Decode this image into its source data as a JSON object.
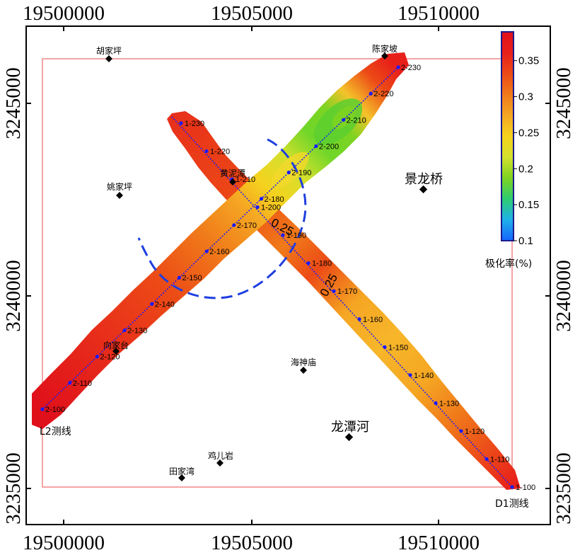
{
  "map": {
    "x_axis": {
      "min": 19499000,
      "max": 19512700,
      "ticks": [
        "19500000",
        "19505000",
        "19510000"
      ],
      "tick_values": [
        19500000,
        19505000,
        19510000
      ]
    },
    "y_axis": {
      "min": 3234700,
      "max": 3247600,
      "ticks": [
        "3235000",
        "3240000",
        "3245000"
      ],
      "tick_values": [
        3235000,
        3240000,
        3245000
      ]
    },
    "survey_lines": [
      {
        "id": "D1",
        "label": "D1测线",
        "start_station": "1-100",
        "end_station": "1-230",
        "stations": [
          "1-100",
          "1-110",
          "1-120",
          "1-130",
          "1-140",
          "1-150",
          "1-160",
          "1-170",
          "1-180",
          "1-190",
          "1-200",
          "1-210",
          "1-220",
          "1-230"
        ]
      },
      {
        "id": "L2",
        "label": "L2测线",
        "start_station": "2-100",
        "end_station": "2-230",
        "stations": [
          "2-100",
          "2-110",
          "2-120",
          "2-130",
          "2-140",
          "2-150",
          "2-160",
          "2-170",
          "2-180",
          "2-190",
          "2-200",
          "2-210",
          "2-220",
          "2-230"
        ]
      }
    ],
    "places": [
      {
        "name": "胡家坪",
        "size": "small"
      },
      {
        "name": "陈家坡",
        "size": "small"
      },
      {
        "name": "姚家坪",
        "size": "small"
      },
      {
        "name": "黄泥潭",
        "size": "small"
      },
      {
        "name": "景龙桥",
        "size": "large"
      },
      {
        "name": "向家台",
        "size": "small"
      },
      {
        "name": "海神庙",
        "size": "small"
      },
      {
        "name": "龙潭河",
        "size": "large"
      },
      {
        "name": "鸡儿岩",
        "size": "small"
      },
      {
        "name": "田家湾",
        "size": "small"
      }
    ],
    "contour_labels": [
      "0.25",
      "0.25"
    ],
    "colorbar": {
      "title": "极化率(%)",
      "min": 0.1,
      "max": 0.39,
      "ticks": [
        "0.35",
        "0.3",
        "0.25",
        "0.2",
        "0.15",
        "0.1"
      ],
      "tick_values": [
        0.35,
        0.3,
        0.25,
        0.2,
        0.15,
        0.1
      ],
      "colors": [
        "#1565ff",
        "#1fb0e8",
        "#2ecc71",
        "#7ed321",
        "#d4e02c",
        "#f5d21e",
        "#f5a623",
        "#f07a1a",
        "#ec4a16",
        "#e8201a",
        "#e0101a"
      ]
    },
    "colors": {
      "boundary": "#f5a5a5",
      "survey_line": "#1a1aff",
      "station_marker": "#1a1aff",
      "anomaly_contour": "#1f3fe0"
    }
  }
}
